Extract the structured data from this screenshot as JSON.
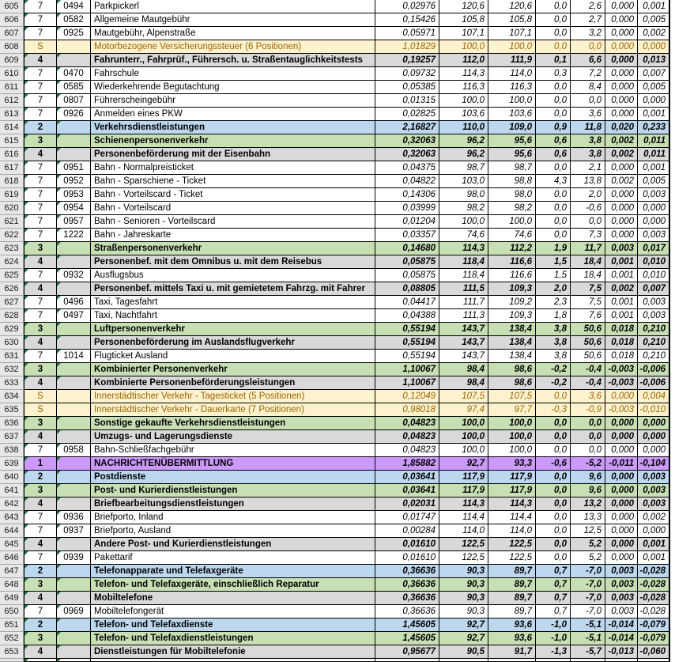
{
  "colors": {
    "purple": "#CC99FF",
    "blue": "#BDD7EE",
    "green": "#C6E0B4",
    "gray": "#D9D9D9",
    "cream": "#FDF2CE",
    "creamText": "#9C6500",
    "rowhdrBg": "#E7E7E7",
    "rowhdrLine": "#A6A6A6",
    "triangle": "#1E7145"
  },
  "rows": [
    {
      "num": "605",
      "type": "7",
      "level": "7",
      "code": "0494",
      "name": "Parkpickerl",
      "values": [
        "0,02976",
        "120,6",
        "120,6",
        "0,0",
        "2,6",
        "0,000",
        "0,001"
      ]
    },
    {
      "num": "606",
      "type": "7",
      "level": "7",
      "code": "0582",
      "name": "Allgemeine Mautgebühr",
      "values": [
        "0,15426",
        "105,8",
        "105,8",
        "0,0",
        "2,7",
        "0,000",
        "0,005"
      ]
    },
    {
      "num": "607",
      "type": "7",
      "level": "7",
      "code": "0925",
      "name": "Mautgebühr, Alpenstraße",
      "values": [
        "0,05971",
        "107,1",
        "107,1",
        "0,0",
        "3,2",
        "0,000",
        "0,002"
      ]
    },
    {
      "num": "608",
      "type": "S",
      "level": "S",
      "code": "",
      "name": "Motorbezogene Versicherungssteuer (6 Positionen)",
      "values": [
        "1,01829",
        "100,0",
        "100,0",
        "0,0",
        "0,0",
        "0,000",
        "0,000"
      ]
    },
    {
      "num": "609",
      "type": "4",
      "level": "4",
      "code": "",
      "name": "Fahrunterr., Fahrprüf., Führersch. u. Straßentauglichkeitstests",
      "values": [
        "0,19257",
        "112,0",
        "111,9",
        "0,1",
        "6,6",
        "0,000",
        "0,013"
      ]
    },
    {
      "num": "610",
      "type": "7",
      "level": "7",
      "code": "0470",
      "name": "Fahrschule",
      "values": [
        "0,09732",
        "114,3",
        "114,0",
        "0,3",
        "7,2",
        "0,000",
        "0,007"
      ]
    },
    {
      "num": "611",
      "type": "7",
      "level": "7",
      "code": "0585",
      "name": "Wiederkehrende Begutachtung",
      "values": [
        "0,05385",
        "116,3",
        "116,3",
        "0,0",
        "8,4",
        "0,000",
        "0,005"
      ]
    },
    {
      "num": "612",
      "type": "7",
      "level": "7",
      "code": "0807",
      "name": "Führerscheingebühr",
      "values": [
        "0,01315",
        "100,0",
        "100,0",
        "0,0",
        "0,0",
        "0,000",
        "0,000"
      ]
    },
    {
      "num": "613",
      "type": "7",
      "level": "7",
      "code": "0926",
      "name": "Anmelden eines PKW",
      "values": [
        "0,02825",
        "103,6",
        "103,6",
        "0,0",
        "3,6",
        "0,000",
        "0,001"
      ]
    },
    {
      "num": "614",
      "type": "2",
      "level": "2",
      "code": "",
      "name": "Verkehrsdienstleistungen",
      "values": [
        "2,16827",
        "110,0",
        "109,0",
        "0,9",
        "11,8",
        "0,020",
        "0,233"
      ]
    },
    {
      "num": "615",
      "type": "3",
      "level": "3",
      "code": "",
      "name": "Schienenpersonenverkehr",
      "values": [
        "0,32063",
        "96,2",
        "95,6",
        "0,6",
        "3,8",
        "0,002",
        "0,011"
      ]
    },
    {
      "num": "616",
      "type": "4",
      "level": "4",
      "code": "",
      "name": "Personenbeförderung mit der Eisenbahn",
      "values": [
        "0,32063",
        "96,2",
        "95,6",
        "0,6",
        "3,8",
        "0,002",
        "0,011"
      ]
    },
    {
      "num": "617",
      "type": "7",
      "level": "7",
      "code": "0951",
      "name": "Bahn - Normalpreisticket",
      "values": [
        "0,04375",
        "98,7",
        "98,7",
        "0,0",
        "2,1",
        "0,000",
        "0,001"
      ]
    },
    {
      "num": "618",
      "type": "7",
      "level": "7",
      "code": "0952",
      "name": "Bahn - Sparschiene - Ticket",
      "values": [
        "0,04822",
        "103,0",
        "98,8",
        "4,3",
        "13,8",
        "0,002",
        "0,005"
      ]
    },
    {
      "num": "619",
      "type": "7",
      "level": "7",
      "code": "0953",
      "name": "Bahn - Vorteilscard - Ticket",
      "values": [
        "0,14306",
        "98,0",
        "98,0",
        "0,0",
        "2,0",
        "0,000",
        "0,003"
      ]
    },
    {
      "num": "620",
      "type": "7",
      "level": "7",
      "code": "0954",
      "name": "Bahn - Vorteilscard",
      "values": [
        "0,03999",
        "98,2",
        "98,2",
        "0,0",
        "-0,6",
        "0,000",
        "0,000"
      ]
    },
    {
      "num": "621",
      "type": "7",
      "level": "7",
      "code": "0957",
      "name": "Bahn - Senioren - Vorteilscard",
      "values": [
        "0,01204",
        "100,0",
        "100,0",
        "0,0",
        "0,0",
        "0,000",
        "0,000"
      ]
    },
    {
      "num": "622",
      "type": "7",
      "level": "7",
      "code": "1222",
      "name": "Bahn - Jahreskarte",
      "values": [
        "0,03357",
        "74,6",
        "74,6",
        "0,0",
        "7,3",
        "0,000",
        "0,003"
      ]
    },
    {
      "num": "623",
      "type": "3",
      "level": "3",
      "code": "",
      "name": "Straßenpersonenverkehr",
      "values": [
        "0,14680",
        "114,3",
        "112,2",
        "1,9",
        "11,7",
        "0,003",
        "0,017"
      ]
    },
    {
      "num": "624",
      "type": "4",
      "level": "4",
      "code": "",
      "name": "Personenbef. mit dem Omnibus u. mit dem Reisebus",
      "values": [
        "0,05875",
        "118,4",
        "116,6",
        "1,5",
        "18,4",
        "0,001",
        "0,010"
      ]
    },
    {
      "num": "625",
      "type": "7",
      "level": "7",
      "code": "0932",
      "name": "Ausflugsbus",
      "values": [
        "0,05875",
        "118,4",
        "116,6",
        "1,5",
        "18,4",
        "0,001",
        "0,010"
      ]
    },
    {
      "num": "626",
      "type": "4",
      "level": "4",
      "code": "",
      "name": "Personenbef. mittels Taxi u. mit gemietetem Fahrzg. mit Fahrer",
      "values": [
        "0,08805",
        "111,5",
        "109,3",
        "2,0",
        "7,5",
        "0,002",
        "0,007"
      ]
    },
    {
      "num": "627",
      "type": "7",
      "level": "7",
      "code": "0496",
      "name": "Taxi, Tagesfahrt",
      "values": [
        "0,04417",
        "111,7",
        "109,2",
        "2,3",
        "7,5",
        "0,001",
        "0,003"
      ]
    },
    {
      "num": "628",
      "type": "7",
      "level": "7",
      "code": "0497",
      "name": "Taxi, Nachtfahrt",
      "values": [
        "0,04388",
        "111,3",
        "109,3",
        "1,8",
        "7,6",
        "0,001",
        "0,003"
      ]
    },
    {
      "num": "629",
      "type": "3",
      "level": "3",
      "code": "",
      "name": "Luftpersonenverkehr",
      "values": [
        "0,55194",
        "143,7",
        "138,4",
        "3,8",
        "50,6",
        "0,018",
        "0,210"
      ]
    },
    {
      "num": "630",
      "type": "4",
      "level": "4",
      "code": "",
      "name": "Personenbeförderung im Auslandsflugverkehr",
      "values": [
        "0,55194",
        "143,7",
        "138,4",
        "3,8",
        "50,6",
        "0,018",
        "0,210"
      ]
    },
    {
      "num": "631",
      "type": "7",
      "level": "7",
      "code": "1014",
      "name": "Flugticket Ausland",
      "values": [
        "0,55194",
        "143,7",
        "138,4",
        "3,8",
        "50,6",
        "0,018",
        "0,210"
      ]
    },
    {
      "num": "632",
      "type": "3",
      "level": "3",
      "code": "",
      "name": "Kombinierter Personenverkehr",
      "values": [
        "1,10067",
        "98,4",
        "98,6",
        "-0,2",
        "-0,4",
        "-0,003",
        "-0,006"
      ]
    },
    {
      "num": "633",
      "type": "4",
      "level": "4",
      "code": "",
      "name": "Kombinierte Personenbeförderungsleistungen",
      "values": [
        "1,10067",
        "98,4",
        "98,6",
        "-0,2",
        "-0,4",
        "-0,003",
        "-0,006"
      ]
    },
    {
      "num": "634",
      "type": "S",
      "level": "S",
      "code": "",
      "name": "Innerstädtischer Verkehr - Tagesticket (5 Positionen)",
      "values": [
        "0,12049",
        "107,5",
        "107,5",
        "0,0",
        "3,6",
        "0,000",
        "0,004"
      ]
    },
    {
      "num": "635",
      "type": "S",
      "level": "S",
      "code": "",
      "name": "Innerstädtischer Verkehr - Dauerkarte (7 Positionen)",
      "values": [
        "0,98018",
        "97,4",
        "97,7",
        "-0,3",
        "-0,9",
        "-0,003",
        "-0,010"
      ]
    },
    {
      "num": "636",
      "type": "3",
      "level": "3",
      "code": "",
      "name": "Sonstige gekaufte Verkehrsdienstleistungen",
      "values": [
        "0,04823",
        "100,0",
        "100,0",
        "0,0",
        "0,0",
        "0,000",
        "0,000"
      ]
    },
    {
      "num": "637",
      "type": "4",
      "level": "4",
      "code": "",
      "name": "Umzugs- und Lagerungsdienste",
      "values": [
        "0,04823",
        "100,0",
        "100,0",
        "0,0",
        "0,0",
        "0,000",
        "0,000"
      ]
    },
    {
      "num": "638",
      "type": "7",
      "level": "7",
      "code": "0958",
      "name": "Bahn-Schließfachgebühr",
      "values": [
        "0,04823",
        "100,0",
        "100,0",
        "0,0",
        "0,0",
        "0,000",
        "0,000"
      ]
    },
    {
      "num": "639",
      "type": "1",
      "level": "1",
      "code": "",
      "name": "NACHRICHTENÜBERMITTLUNG",
      "values": [
        "1,85882",
        "92,7",
        "93,3",
        "-0,6",
        "-5,2",
        "-0,011",
        "-0,104"
      ]
    },
    {
      "num": "640",
      "type": "2",
      "level": "2",
      "code": "",
      "name": "Postdienste",
      "values": [
        "0,03641",
        "117,9",
        "117,9",
        "0,0",
        "9,6",
        "0,000",
        "0,003"
      ]
    },
    {
      "num": "641",
      "type": "3",
      "level": "3",
      "code": "",
      "name": "Post- und Kurierdienstleistungen",
      "values": [
        "0,03641",
        "117,9",
        "117,9",
        "0,0",
        "9,6",
        "0,000",
        "0,003"
      ]
    },
    {
      "num": "642",
      "type": "4",
      "level": "4",
      "code": "",
      "name": "Briefbearbeitungsdienstleistungen",
      "values": [
        "0,02031",
        "114,3",
        "114,3",
        "0,0",
        "13,2",
        "0,000",
        "0,003"
      ]
    },
    {
      "num": "643",
      "type": "7",
      "level": "7",
      "code": "0936",
      "name": "Briefporto, Inland",
      "values": [
        "0,01747",
        "114,4",
        "114,4",
        "0,0",
        "13,3",
        "0,000",
        "0,002"
      ]
    },
    {
      "num": "644",
      "type": "7",
      "level": "7",
      "code": "0937",
      "name": "Briefporto, Ausland",
      "values": [
        "0,00284",
        "114,0",
        "114,0",
        "0,0",
        "12,5",
        "0,000",
        "0,000"
      ]
    },
    {
      "num": "645",
      "type": "4",
      "level": "4",
      "code": "",
      "name": "Andere Post- und Kurierdienstleistungen",
      "values": [
        "0,01610",
        "122,5",
        "122,5",
        "0,0",
        "5,2",
        "0,000",
        "0,001"
      ]
    },
    {
      "num": "646",
      "type": "7",
      "level": "7",
      "code": "0939",
      "name": "Pakettarif",
      "values": [
        "0,01610",
        "122,5",
        "122,5",
        "0,0",
        "5,2",
        "0,000",
        "0,001"
      ]
    },
    {
      "num": "647",
      "type": "2",
      "level": "2",
      "code": "",
      "name": "Telefonapparate und Telefaxgeräte",
      "values": [
        "0,36636",
        "90,3",
        "89,7",
        "0,7",
        "-7,0",
        "0,003",
        "-0,028"
      ]
    },
    {
      "num": "648",
      "type": "3",
      "level": "3",
      "code": "",
      "name": "Telefon- und Telefaxgeräte, einschließlich Reparatur",
      "values": [
        "0,36636",
        "90,3",
        "89,7",
        "0,7",
        "-7,0",
        "0,003",
        "-0,028"
      ]
    },
    {
      "num": "649",
      "type": "4",
      "level": "4",
      "code": "",
      "name": "Mobiltelefone",
      "values": [
        "0,36636",
        "90,3",
        "89,7",
        "0,7",
        "-7,0",
        "0,003",
        "-0,028"
      ]
    },
    {
      "num": "650",
      "type": "7",
      "level": "7",
      "code": "0969",
      "name": "Mobiltelefongerät",
      "values": [
        "0,36636",
        "90,3",
        "89,7",
        "0,7",
        "-7,0",
        "0,003",
        "-0,028"
      ]
    },
    {
      "num": "651",
      "type": "2",
      "level": "2",
      "code": "",
      "name": "Telefon- und Telefaxdienste",
      "values": [
        "1,45605",
        "92,7",
        "93,6",
        "-1,0",
        "-5,1",
        "-0,014",
        "-0,079"
      ]
    },
    {
      "num": "652",
      "type": "3",
      "level": "3",
      "code": "",
      "name": "Telefon- und Telefaxdienstleistungen",
      "values": [
        "1,45605",
        "92,7",
        "93,6",
        "-1,0",
        "-5,1",
        "-0,014",
        "-0,079"
      ]
    },
    {
      "num": "653",
      "type": "4",
      "level": "4",
      "code": "",
      "name": "Dienstleistungen für Mobiltelefonie",
      "values": [
        "0,95677",
        "90,5",
        "91,7",
        "-1,3",
        "-5,7",
        "-0,013",
        "-0,060"
      ]
    }
  ],
  "partial_row": {
    "num": "",
    "type": "7",
    "level": "",
    "code": "",
    "name": "",
    "values": [
      "",
      "",
      "",
      "",
      "",
      "",
      ""
    ]
  }
}
